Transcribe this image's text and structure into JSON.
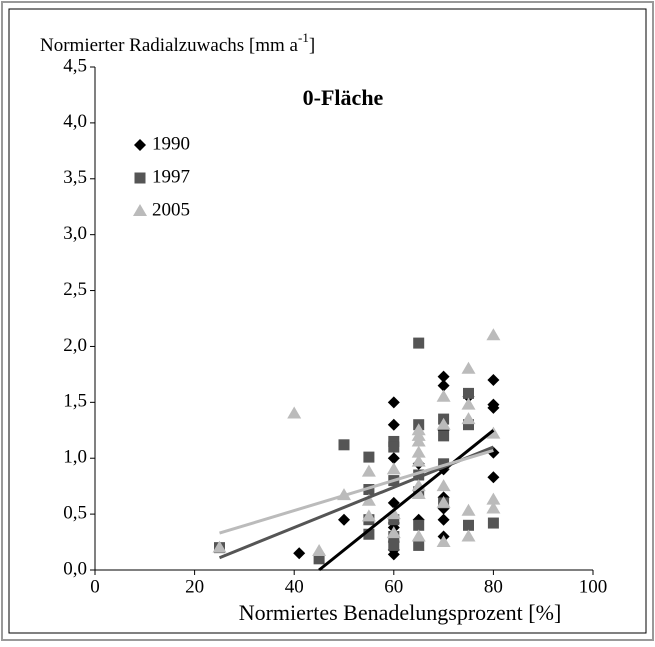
{
  "chart_data": {
    "type": "scatter",
    "title": "0-Fläche",
    "ylabel": {
      "text": "Normierter Radialzuwachs [mm a",
      "sup": "-1",
      "end": "]"
    },
    "xlabel": "Normiertes Benadelungsprozent [%]",
    "xlim": [
      0,
      100
    ],
    "xticks": [
      0,
      20,
      40,
      60,
      80,
      100
    ],
    "ylim": [
      0,
      4.5
    ],
    "yticks": [
      {
        "value": 0,
        "label": "0,0"
      },
      {
        "value": 0.5,
        "label": "0,5"
      },
      {
        "value": 1,
        "label": "1,0"
      },
      {
        "value": 1.5,
        "label": "1,5"
      },
      {
        "value": 2,
        "label": "2,0"
      },
      {
        "value": 2.5,
        "label": "2,5"
      },
      {
        "value": 3,
        "label": "3,0"
      },
      {
        "value": 3.5,
        "label": "3,5"
      },
      {
        "value": 4,
        "label": "4,0"
      },
      {
        "value": 4.5,
        "label": "4,5"
      }
    ],
    "legend": "top-left",
    "series": [
      {
        "name": "1990",
        "color": "#000000",
        "marker": "diamond",
        "x": [
          41,
          50,
          60,
          60,
          60,
          60,
          60,
          60,
          60,
          60,
          60,
          60,
          65,
          65,
          65,
          70,
          70,
          70,
          70,
          70,
          70,
          70,
          70,
          75,
          80,
          80,
          80,
          80,
          80
        ],
        "values": [
          0.15,
          0.45,
          1.5,
          1.3,
          1.0,
          0.6,
          0.42,
          0.38,
          0.3,
          0.25,
          0.18,
          0.14,
          0.95,
          0.85,
          0.45,
          1.73,
          1.65,
          1.25,
          0.9,
          0.65,
          0.55,
          0.45,
          0.3,
          1.55,
          1.7,
          1.48,
          1.45,
          1.05,
          0.83
        ],
        "trend": {
          "x": [
            45,
            80
          ],
          "y": [
            0,
            1.25
          ]
        }
      },
      {
        "name": "1997",
        "color": "#555555",
        "marker": "square",
        "x": [
          25,
          45,
          50,
          55,
          55,
          55,
          55,
          60,
          60,
          60,
          60,
          60,
          60,
          65,
          65,
          65,
          65,
          65,
          65,
          70,
          70,
          70,
          70,
          75,
          75,
          75,
          80
        ],
        "values": [
          0.2,
          0.1,
          1.12,
          1.01,
          0.72,
          0.45,
          0.32,
          1.15,
          1.1,
          0.8,
          0.45,
          0.3,
          0.22,
          2.03,
          1.3,
          0.85,
          0.7,
          0.4,
          0.22,
          1.35,
          1.2,
          0.95,
          0.6,
          1.58,
          1.3,
          0.4,
          0.42
        ],
        "trend": {
          "x": [
            25,
            80
          ],
          "y": [
            0.11,
            1.1
          ]
        }
      },
      {
        "name": "2005",
        "color": "#bbbbbb",
        "marker": "triangle",
        "x": [
          25,
          40,
          45,
          50,
          55,
          55,
          55,
          60,
          60,
          60,
          65,
          65,
          65,
          65,
          65,
          65,
          65,
          65,
          70,
          70,
          70,
          70,
          70,
          75,
          75,
          75,
          75,
          75,
          80,
          80,
          80,
          80
        ],
        "values": [
          0.2,
          1.4,
          0.17,
          0.67,
          0.88,
          0.62,
          0.48,
          0.9,
          0.5,
          0.33,
          1.25,
          1.2,
          1.15,
          1.05,
          0.97,
          0.75,
          0.68,
          0.3,
          1.55,
          1.3,
          0.75,
          0.6,
          0.25,
          1.8,
          1.48,
          1.35,
          0.53,
          0.3,
          2.1,
          1.22,
          0.63,
          0.55
        ],
        "trend": {
          "x": [
            25,
            80
          ],
          "y": [
            0.33,
            1.07
          ]
        }
      }
    ]
  }
}
